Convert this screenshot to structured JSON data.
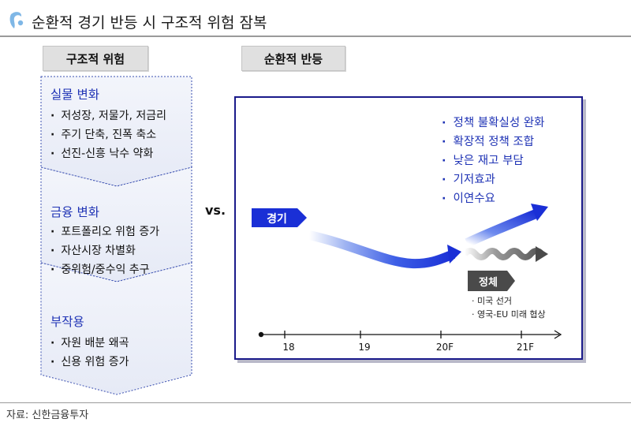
{
  "title": "순환적 경기 반등 시 구조적 위험 잠복",
  "tabs": {
    "left": "구조적 위험",
    "right": "순환적 반등"
  },
  "left_sections": [
    {
      "title": "실물 변화",
      "bullets": [
        "저성장, 저물가, 저금리",
        "주기 단축, 진폭 축소",
        "선진-신흥 낙수 약화"
      ]
    },
    {
      "title": "금융 변화",
      "bullets": [
        "포트폴리오 위험 증가",
        "자산시장 차별화",
        "중위험/중수익 추구"
      ]
    },
    {
      "title": "부작용",
      "bullets": [
        "자원 배분 왜곡",
        "신용 위험 증가"
      ]
    }
  ],
  "vs_label": "vs.",
  "panel": {
    "bullets": [
      "정책 불확실성 완화",
      "확장적 정책 조합",
      "낮은 재고 부담",
      "기저효과",
      "이연수요"
    ],
    "economy_label": "경기",
    "stagnation_label": "정체",
    "notes": [
      "· 미국 선거",
      "· 영국-EU 미래 협상"
    ],
    "timeline_ticks": [
      "18",
      "19",
      "20F",
      "21F"
    ]
  },
  "source": "자료: 신한금융투자",
  "colors": {
    "accent_blue": "#1f33b5",
    "arrow_blue": "#1a2fd6",
    "chevron_border": "#3a4fb0",
    "tab_bg": "#e0e0e0"
  }
}
